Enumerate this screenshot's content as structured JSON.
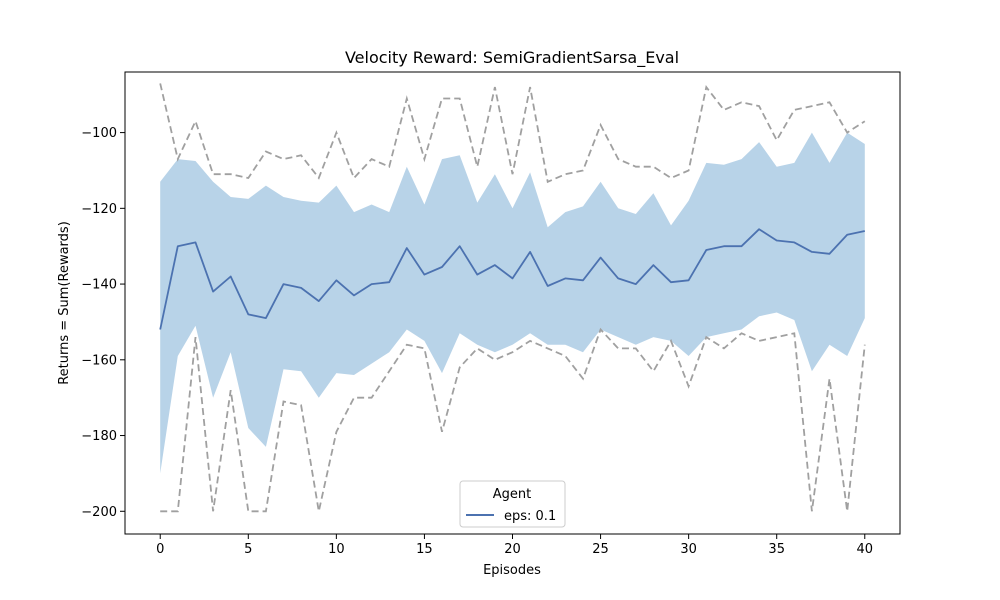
{
  "chart_data": {
    "type": "line",
    "title": "Velocity Reward: SemiGradientSarsa_Eval",
    "xlabel": "Episodes",
    "ylabel": "Returns = Sum(Rewards)",
    "xlim": [
      -2,
      42
    ],
    "ylim": [
      -206,
      -84
    ],
    "xticks": [
      0,
      5,
      10,
      15,
      20,
      25,
      30,
      35,
      40
    ],
    "yticks": [
      -200,
      -180,
      -160,
      -140,
      -120,
      -100
    ],
    "grid": false,
    "legend": {
      "title": "Agent",
      "placement": "bottom-center"
    },
    "x": [
      0,
      1,
      2,
      3,
      4,
      5,
      6,
      7,
      8,
      9,
      10,
      11,
      12,
      13,
      14,
      15,
      16,
      17,
      18,
      19,
      20,
      21,
      22,
      23,
      24,
      25,
      26,
      27,
      28,
      29,
      30,
      31,
      32,
      33,
      34,
      35,
      36,
      37,
      38,
      39,
      40
    ],
    "series": [
      {
        "name": "eps: 0.1",
        "color": "#4c72b0",
        "mean": [
          -152,
          -130,
          -129,
          -142,
          -138,
          -148,
          -149,
          -140,
          -141,
          -144.5,
          -139,
          -143,
          -140,
          -139.5,
          -130.5,
          -137.5,
          -135.5,
          -130,
          -137.5,
          -135,
          -138.5,
          -131.5,
          -140.5,
          -138.5,
          -139,
          -133,
          -138.5,
          -140,
          -135,
          -139.5,
          -139,
          -131,
          -130,
          -130,
          -125.5,
          -128.5,
          -129,
          -131.5,
          -132,
          -127,
          -126
        ],
        "band_upper": [
          -113,
          -107,
          -107.5,
          -113,
          -117,
          -117.5,
          -114,
          -117,
          -118,
          -118.5,
          -114,
          -121,
          -119,
          -121,
          -109,
          -119,
          -107,
          -106,
          -118.5,
          -111,
          -120,
          -110.5,
          -125,
          -121,
          -119.5,
          -113,
          -120,
          -121.5,
          -116,
          -124.5,
          -118,
          -108,
          -108.5,
          -107,
          -102.5,
          -109,
          -108,
          -100,
          -108,
          -100,
          -103
        ],
        "band_lower": [
          -190,
          -159,
          -151,
          -170,
          -158,
          -178,
          -183,
          -162.5,
          -163,
          -170,
          -163.5,
          -164,
          -161,
          -158,
          -152,
          -155,
          -163.5,
          -153,
          -156,
          -158,
          -156,
          -153,
          -156,
          -156,
          -158,
          -152,
          -154,
          -156,
          -154,
          -155,
          -159,
          -154,
          -153,
          -152,
          -148.5,
          -147.5,
          -149.5,
          -163,
          -156,
          -159,
          -149
        ],
        "max": [
          -87,
          -107,
          -97,
          -111,
          -111,
          -112,
          -105,
          -107,
          -106,
          -112,
          -100,
          -112,
          -107,
          -109,
          -91,
          -107,
          -91,
          -91,
          -109,
          -88,
          -111,
          -88,
          -113,
          -111,
          -110,
          -98,
          -107,
          -109,
          -109,
          -112,
          -110,
          -88,
          -94,
          -92,
          -93,
          -102,
          -94,
          -93,
          -92,
          -100,
          -97
        ],
        "min": [
          -200,
          -200,
          -154,
          -200,
          -168,
          -200,
          -200,
          -171,
          -172,
          -200,
          -179,
          -170,
          -170,
          -163,
          -156,
          -157,
          -179,
          -162,
          -157,
          -160,
          -158,
          -155,
          -157,
          -159,
          -165,
          -152,
          -157,
          -157,
          -163,
          -155,
          -167,
          -154,
          -157,
          -153,
          -155,
          -154,
          -153,
          -200,
          -165,
          -200,
          -156
        ]
      }
    ],
    "colors": {
      "band": "#b8d3e8",
      "minmax": "#a0a0a0",
      "mean": "#4c72b0"
    }
  }
}
